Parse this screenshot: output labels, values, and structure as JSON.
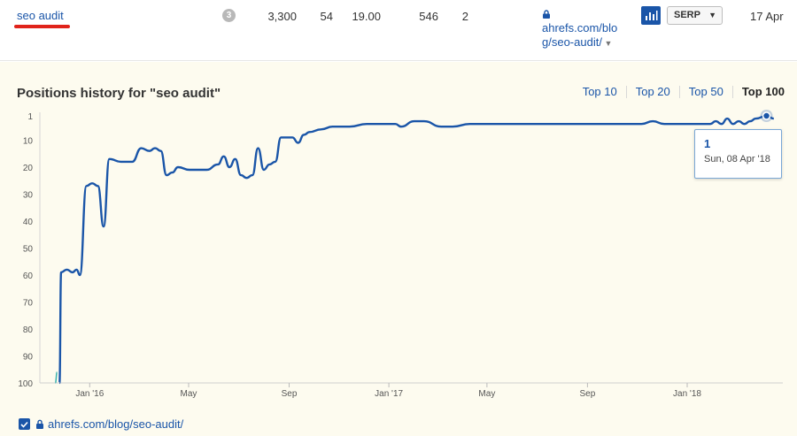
{
  "row": {
    "keyword": "seo audit",
    "serp_features": "3",
    "volume": "3,300",
    "kd": "54",
    "cpc": "19.00",
    "traffic": "546",
    "position": "2",
    "url_line1": "ahrefs.com/blo",
    "url_line2": "g/seo-audit/",
    "serp_label": "SERP",
    "updated": "17 Apr",
    "accent": "#1a55a8",
    "highlight": "#e0231b"
  },
  "panel": {
    "title": "Positions history for \"seo audit\"",
    "tabs": [
      "Top 10",
      "Top 20",
      "Top 50",
      "Top 100"
    ],
    "active_tab": "Top 100"
  },
  "tooltip": {
    "value": "1",
    "date": "Sun, 08 Apr '18"
  },
  "footer": {
    "url": "ahrefs.com/blog/seo-audit/"
  },
  "chart_data": {
    "type": "line",
    "title": "Positions history for \"seo audit\"",
    "y_reversed": true,
    "ylim": [
      1,
      100
    ],
    "y_ticks": [
      "1",
      "10",
      "20",
      "30",
      "40",
      "50",
      "60",
      "70",
      "80",
      "90",
      "100"
    ],
    "x_ticks": [
      "Jan '16",
      "May",
      "Sep",
      "Jan '17",
      "May",
      "Sep",
      "Jan '18"
    ],
    "grid": false,
    "legend": "none",
    "series": [
      {
        "color": "#1a55a8",
        "x": [
          "2015-11-25",
          "2015-11-27",
          "2015-12-04",
          "2015-12-11",
          "2015-12-16",
          "2015-12-20",
          "2015-12-28",
          "2016-01-04",
          "2016-01-11",
          "2016-01-18",
          "2016-01-25",
          "2016-02-08",
          "2016-02-22",
          "2016-03-04",
          "2016-03-14",
          "2016-03-21",
          "2016-03-28",
          "2016-04-04",
          "2016-04-11",
          "2016-04-18",
          "2016-05-02",
          "2016-05-16",
          "2016-05-23",
          "2016-06-06",
          "2016-06-13",
          "2016-06-20",
          "2016-06-27",
          "2016-07-04",
          "2016-07-11",
          "2016-07-18",
          "2016-07-25",
          "2016-08-01",
          "2016-08-08",
          "2016-08-15",
          "2016-08-22",
          "2016-09-05",
          "2016-09-12",
          "2016-09-19",
          "2016-09-26",
          "2016-10-10",
          "2016-10-24",
          "2016-11-14",
          "2016-12-05",
          "2016-12-19",
          "2017-01-09",
          "2017-01-16",
          "2017-02-01",
          "2017-02-13",
          "2017-03-06",
          "2017-03-20",
          "2017-04-10",
          "2017-06-01",
          "2017-08-01",
          "2017-10-01",
          "2017-11-06",
          "2017-11-20",
          "2017-12-04",
          "2017-12-18",
          "2018-01-01",
          "2018-01-15",
          "2018-01-29",
          "2018-02-05",
          "2018-02-12",
          "2018-02-19",
          "2018-02-26",
          "2018-03-05",
          "2018-03-12",
          "2018-03-19",
          "2018-03-26",
          "2018-04-08",
          "2018-04-17"
        ],
        "y": [
          100,
          59,
          58,
          59,
          58,
          60,
          27,
          26,
          27,
          42,
          17,
          18,
          18,
          13,
          14,
          13,
          14,
          23,
          22,
          20,
          21,
          21,
          21,
          19,
          16,
          20,
          17,
          23,
          24,
          23,
          13,
          21,
          19,
          18,
          9,
          9,
          11,
          8,
          7,
          6,
          5,
          5,
          4,
          4,
          4,
          5,
          3,
          3,
          5,
          5,
          4,
          4,
          4,
          4,
          4,
          3,
          4,
          4,
          4,
          4,
          4,
          3,
          4,
          2,
          4,
          3,
          4,
          3,
          2,
          1,
          2
        ]
      },
      {
        "color": "#39b2ad",
        "x": [
          "2015-11-20",
          "2015-11-22"
        ],
        "y": [
          100,
          96
        ]
      }
    ]
  }
}
